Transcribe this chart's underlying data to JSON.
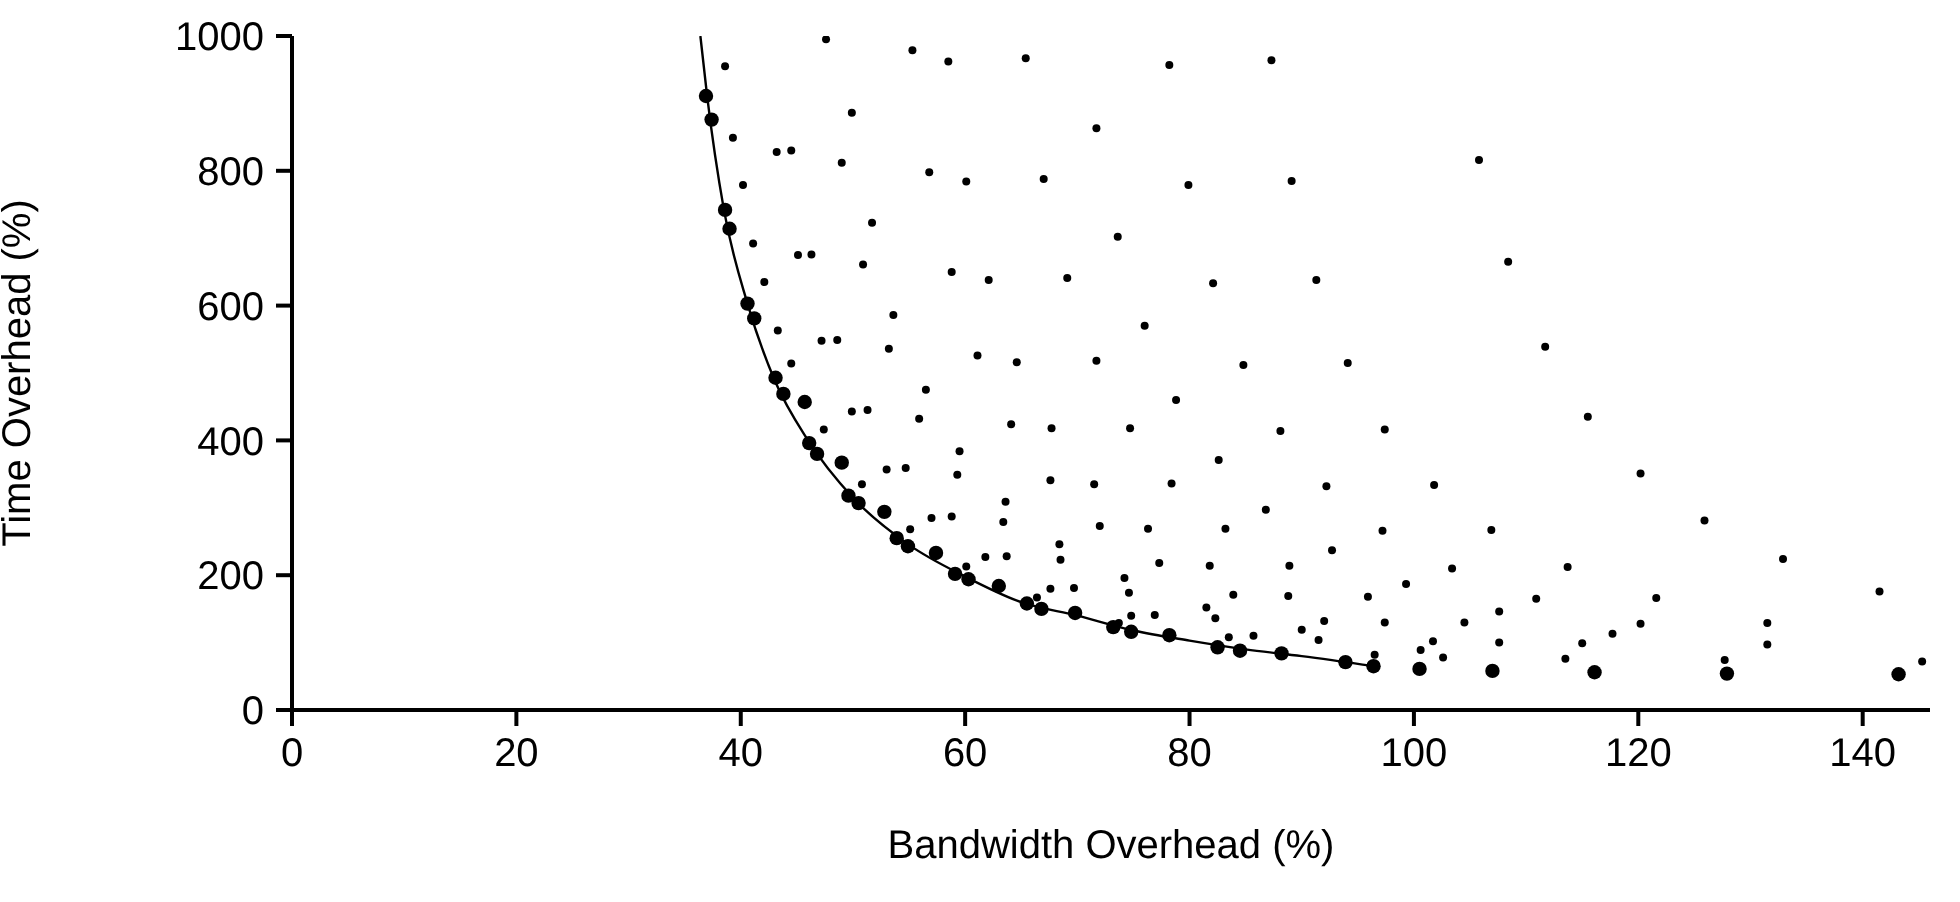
{
  "chart_data": {
    "type": "scatter",
    "xlabel": "Bandwidth Overhead (%)",
    "ylabel": "Time Overhead (%)",
    "xlim": [
      0,
      146
    ],
    "ylim": [
      0,
      1000
    ],
    "xticks": [
      0,
      20,
      40,
      60,
      80,
      100,
      120,
      140
    ],
    "yticks": [
      0,
      200,
      400,
      600,
      800,
      1000
    ],
    "grid": false,
    "marker": "circle",
    "series": [
      {
        "color": "#000000",
        "x": [
          38.6,
          47.6,
          55.3,
          58.5,
          65.4,
          78.2,
          87.3,
          49.9,
          71.7,
          39.3,
          43.2,
          44.5,
          49.0,
          40.2,
          56.8,
          60.1,
          67.0,
          79.9,
          89.1,
          51.7,
          73.6,
          41.1,
          45.1,
          46.3,
          50.9,
          42.1,
          58.8,
          62.1,
          69.1,
          82.1,
          91.3,
          53.6,
          76.0,
          43.3,
          47.2,
          48.6,
          53.2,
          44.5,
          61.1,
          64.6,
          71.7,
          84.8,
          56.5,
          49.9,
          51.3,
          78.8,
          55.9,
          64.1,
          67.7,
          74.7,
          88.1,
          47.4,
          59.5,
          82.6,
          53.0,
          54.7,
          59.3,
          67.6,
          71.5,
          78.4,
          50.8,
          63.6,
          86.8,
          57.0,
          58.8,
          63.4,
          72.0,
          76.3,
          83.2,
          55.1,
          68.4,
          61.8,
          63.7,
          68.5,
          77.3,
          81.8,
          88.9,
          60.1,
          74.2,
          67.6,
          69.7,
          74.6,
          83.9,
          88.8,
          66.4,
          81.5,
          74.8,
          76.9,
          82.3,
          73.7,
          90.0,
          83.5,
          85.7,
          91.5,
          94.1,
          97.4,
          115.5,
          92.2,
          101.8,
          120.2,
          97.2,
          106.9,
          125.9,
          92.7,
          103.4,
          113.7,
          132.9,
          99.3,
          95.9,
          110.9,
          121.6,
          141.5,
          92.0,
          97.4,
          104.5,
          107.6,
          120.2,
          131.5,
          101.7,
          107.6,
          115.0,
          117.7,
          131.5,
          100.6,
          96.5,
          102.6,
          113.5,
          127.7,
          145.3,
          105.8,
          108.4,
          111.7
        ],
        "values": [
          955,
          995,
          979,
          962,
          967,
          957,
          964,
          886,
          863,
          849,
          828,
          830,
          812,
          779,
          798,
          784,
          788,
          779,
          785,
          723,
          702,
          692,
          675,
          676,
          661,
          635,
          650,
          638,
          641,
          633,
          638,
          586,
          570,
          563,
          548,
          549,
          536,
          514,
          526,
          516,
          518,
          512,
          475,
          443,
          445,
          460,
          432,
          424,
          418,
          418,
          414,
          416,
          384,
          371,
          357,
          359,
          349,
          341,
          335,
          336,
          335,
          309,
          297,
          285,
          287,
          279,
          273,
          269,
          269,
          268,
          246,
          227,
          228,
          223,
          218,
          214,
          214,
          213,
          196,
          180,
          181,
          174,
          171,
          169,
          167,
          152,
          140,
          141,
          136,
          129,
          119,
          108,
          110,
          104,
          515,
          416,
          435,
          332,
          334,
          351,
          266,
          267,
          281,
          237,
          210,
          212,
          224,
          187,
          168,
          165,
          166,
          176,
          132,
          130,
          130,
          146,
          128,
          129,
          102,
          100,
          99,
          113,
          97,
          89,
          82,
          78,
          76,
          74,
          72,
          816,
          665,
          539
        ]
      },
      {
        "color": "#000000",
        "x": [
          36.9,
          37.4,
          38.6,
          39.0,
          40.6,
          41.2,
          43.1,
          43.8,
          45.7,
          46.1,
          46.8,
          49.0,
          49.6,
          50.5,
          52.8,
          53.9,
          54.9,
          57.4,
          59.1,
          60.3,
          63.0,
          65.5,
          66.8,
          69.8,
          73.2,
          74.8,
          78.2,
          82.5,
          84.5,
          88.2,
          93.9,
          96.4,
          100.5,
          107.0,
          116.1,
          127.9,
          143.2
        ],
        "values": [
          911,
          876,
          742,
          714,
          603,
          581,
          493,
          469,
          457,
          396,
          380,
          367,
          318,
          307,
          294,
          255,
          243,
          233,
          202,
          194,
          184,
          158,
          150,
          144,
          123,
          116,
          111,
          93,
          88,
          84,
          71,
          65,
          61,
          58,
          56,
          54,
          53
        ]
      },
      {
        "type": "line",
        "marker": "none",
        "color": "#000000",
        "x": [
          36.4,
          37,
          38.5,
          40.6,
          43,
          46,
          50,
          55,
          60,
          65,
          70,
          75,
          80,
          85,
          90,
          96.5
        ],
        "values": [
          1000,
          911,
          742,
          603,
          490,
          400,
          315,
          245,
          198,
          160,
          140,
          118,
          103,
          90,
          80,
          65
        ]
      }
    ]
  }
}
